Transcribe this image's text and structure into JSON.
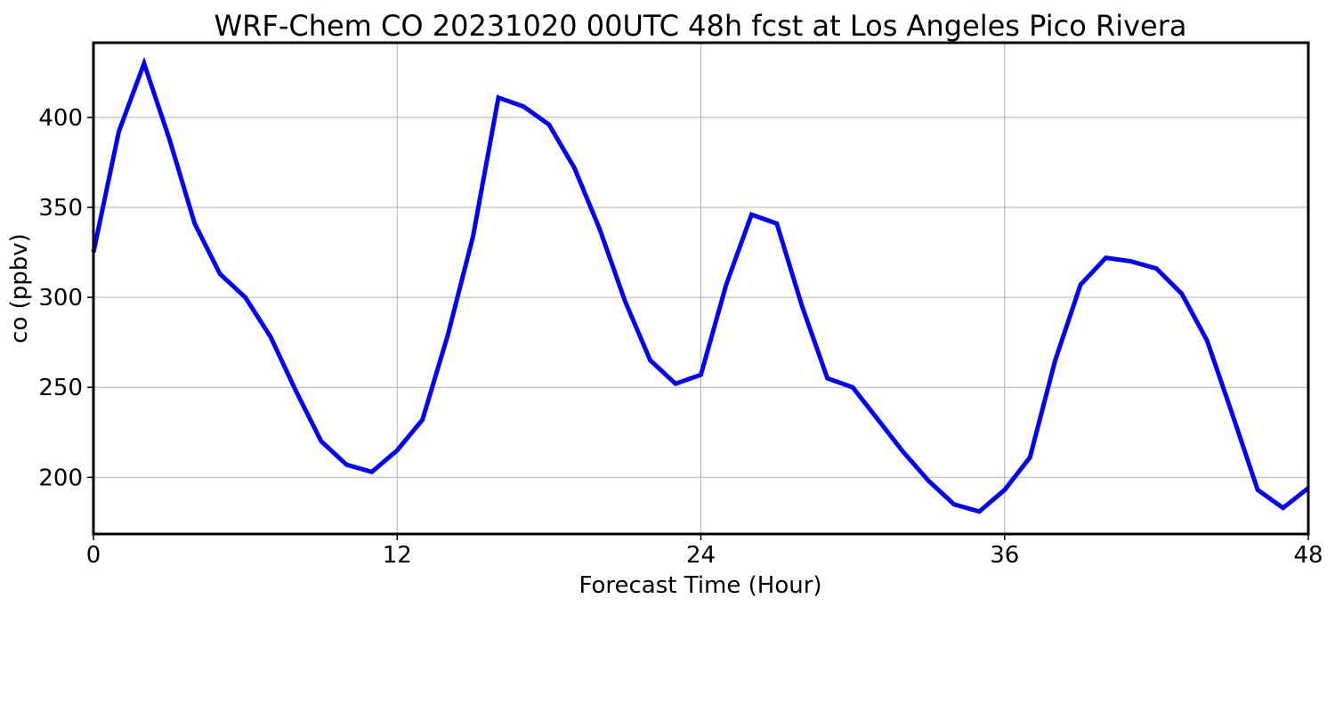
{
  "chart_data": {
    "type": "line",
    "title": "WRF-Chem CO  20231020 00UTC 48h fcst at Los Angeles Pico Rivera",
    "xlabel": "Forecast Time (Hour)",
    "ylabel": "co  (ppbv)",
    "xlim": [
      0,
      48
    ],
    "ylim": [
      168.5,
      441.5
    ],
    "xticks": [
      0,
      12,
      24,
      36,
      48
    ],
    "yticks": [
      200,
      250,
      300,
      350,
      400
    ],
    "grid": true,
    "legend": "none",
    "series": [
      {
        "color": "#0000ff",
        "x": [
          0,
          1,
          2,
          3,
          4,
          5,
          6,
          7,
          8,
          9,
          10,
          11,
          12,
          13,
          14,
          15,
          16,
          17,
          18,
          19,
          20,
          21,
          22,
          23,
          24,
          25,
          26,
          27,
          28,
          29,
          30,
          31,
          32,
          33,
          34,
          35,
          36,
          37,
          38,
          39,
          40,
          41,
          42,
          43,
          44,
          45,
          46,
          47,
          48
        ],
        "values": [
          325,
          392,
          430,
          388,
          341,
          313,
          300,
          278,
          248,
          220,
          207,
          203,
          215,
          232,
          279,
          334,
          411,
          406,
          396,
          372,
          338,
          298,
          265,
          252,
          257,
          307,
          346,
          341,
          295,
          255,
          250,
          232,
          214,
          198,
          185,
          181,
          193,
          211,
          265,
          307,
          322,
          320,
          316,
          302,
          276,
          235,
          193,
          183,
          194
        ]
      }
    ]
  }
}
